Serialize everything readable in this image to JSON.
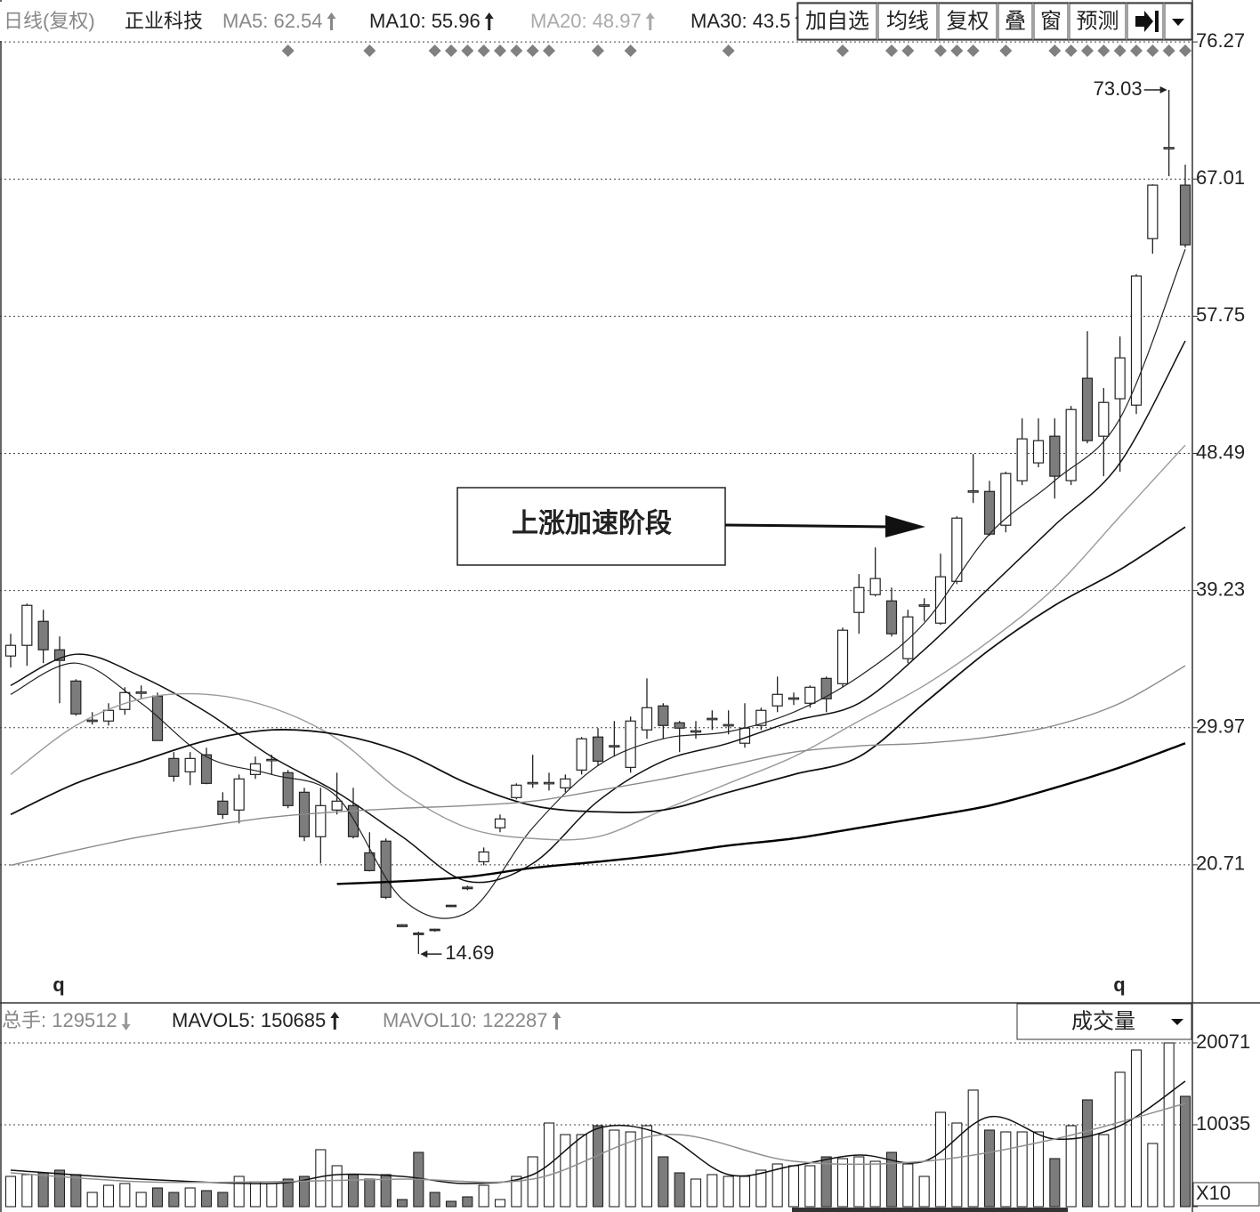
{
  "header": {
    "period": "日线(复权)",
    "stock": "正业科技",
    "buttons": [
      "加自选",
      "均线",
      "复权",
      "叠",
      "窗",
      "预测"
    ]
  },
  "chart_data": [
    {
      "type": "candlestick",
      "categories": [
        null,
        null,
        null,
        null,
        null,
        null,
        null,
        null,
        null,
        null,
        null,
        null,
        null,
        null,
        null,
        null,
        null,
        null,
        null,
        null,
        null,
        null,
        null,
        null,
        null,
        null,
        null,
        null,
        null,
        null,
        null,
        null,
        null,
        null,
        null,
        null,
        null,
        null,
        null,
        null,
        null,
        null,
        null,
        null,
        null,
        null,
        null,
        null,
        null,
        null,
        null,
        null,
        null,
        null,
        null,
        null,
        null,
        null,
        null,
        null,
        null,
        null,
        null,
        null,
        null,
        null,
        null,
        null,
        null,
        null,
        null,
        null,
        null
      ],
      "open": [
        34.81,
        35.53,
        37.15,
        35.23,
        33.12,
        30.42,
        30.42,
        31.2,
        32.3,
        32.1,
        27.89,
        26.99,
        28.14,
        25.01,
        24.41,
        26.81,
        27.77,
        26.93,
        25.61,
        22.61,
        24.41,
        24.71,
        21.52,
        22.31,
        16.66,
        16.1,
        16.36,
        17.98,
        19.2,
        20.92,
        23.21,
        25.25,
        26.21,
        26.21,
        25.91,
        27.11,
        29.34,
        28.7,
        27.29,
        29.82,
        31.44,
        30.3,
        29.7,
        30.54,
        30.12,
        28.92,
        30.12,
        31.44,
        31.92,
        31.62,
        33.3,
        32.94,
        37.75,
        38.95,
        38.53,
        34.63,
        38.2,
        37.03,
        39.85,
        45.9,
        45.92,
        43.64,
        46.64,
        47.85,
        49.65,
        46.65,
        53.56,
        49.65,
        52.18,
        51.75,
        62.99,
        69.08,
        66.6
      ],
      "close": [
        35.53,
        38.23,
        35.23,
        34.51,
        30.9,
        30.48,
        31.14,
        32.34,
        32.38,
        29.1,
        26.69,
        27.89,
        26.21,
        24.11,
        26.51,
        27.53,
        27.83,
        24.71,
        22.61,
        24.71,
        25.01,
        22.61,
        20.32,
        18.52,
        16.54,
        16.0,
        16.3,
        17.92,
        19.1,
        21.58,
        23.81,
        26.09,
        26.27,
        26.27,
        26.51,
        29.22,
        27.71,
        28.76,
        30.42,
        31.32,
        30.12,
        29.94,
        29.76,
        30.6,
        30.18,
        29.94,
        31.14,
        32.22,
        31.98,
        32.7,
        31.92,
        36.55,
        39.43,
        40.04,
        36.31,
        37.45,
        38.26,
        40.16,
        44.12,
        45.96,
        43.04,
        47.13,
        49.47,
        49.35,
        46.95,
        51.45,
        49.35,
        51.93,
        54.94,
        60.47,
        66.6,
        69.14,
        62.57
      ],
      "high": [
        36.31,
        38.35,
        37.93,
        36.13,
        33.24,
        31.02,
        31.62,
        32.7,
        32.82,
        32.34,
        28.32,
        28.32,
        28.62,
        25.61,
        26.81,
        28.02,
        28.14,
        27.11,
        25.91,
        25.91,
        26.93,
        25.91,
        22.91,
        22.49,
        16.7,
        16.2,
        16.4,
        18.0,
        19.3,
        21.88,
        24.11,
        26.21,
        28.14,
        26.93,
        26.81,
        29.34,
        29.94,
        30.42,
        30.72,
        33.3,
        31.62,
        30.42,
        30.42,
        31.14,
        31.14,
        31.62,
        31.32,
        33.42,
        32.34,
        32.82,
        33.42,
        36.73,
        40.34,
        42.14,
        39.43,
        37.93,
        38.71,
        41.72,
        44.24,
        48.45,
        46.64,
        47.25,
        50.85,
        50.85,
        50.85,
        51.69,
        56.74,
        52.9,
        56.38,
        60.59,
        66.66,
        73.03,
        67.98
      ],
      "low": [
        34.03,
        34.15,
        34.33,
        31.62,
        30.78,
        30.18,
        30.12,
        30.84,
        31.92,
        29.1,
        26.33,
        26.09,
        26.15,
        23.81,
        23.51,
        26.51,
        26.81,
        24.53,
        22.31,
        20.8,
        24.11,
        22.49,
        20.26,
        18.4,
        16.5,
        14.69,
        16.2,
        17.85,
        19.0,
        20.68,
        22.91,
        25.13,
        25.91,
        25.73,
        25.61,
        26.81,
        27.41,
        28.02,
        26.93,
        29.22,
        29.22,
        28.32,
        29.22,
        29.82,
        29.52,
        28.62,
        29.82,
        31.02,
        31.5,
        31.32,
        31.02,
        32.7,
        36.31,
        38.83,
        36.13,
        34.33,
        37.15,
        36.91,
        39.67,
        45.14,
        42.92,
        43.16,
        46.35,
        47.55,
        45.44,
        46.35,
        49.17,
        46.95,
        47.25,
        51.15,
        61.97,
        67.2,
        62.39
      ],
      "up_color": "#ffffff",
      "down_color": "#7c7c7c",
      "ylim": [
        11.51,
        79.1
      ],
      "yticks": [
        20.71,
        29.97,
        39.23,
        48.49,
        57.75,
        67.01,
        76.27
      ],
      "grid": true,
      "lines": [
        {
          "name": "MA5: 62.54",
          "color": "#222222",
          "x": [
            0,
            4,
            8,
            12,
            16,
            20,
            24,
            28,
            32,
            36,
            40,
            44,
            48,
            52,
            56,
            60,
            64,
            68,
            72
          ],
          "values": [
            32.22,
            34.33,
            31.62,
            28.01,
            26.81,
            25.31,
            18.4,
            17.5,
            23.21,
            27.41,
            29.22,
            29.7,
            31.02,
            33.42,
            37.03,
            43.04,
            46.65,
            50.85,
            62.27
          ]
        },
        {
          "name": "MA10: 55.96",
          "color": "#111111",
          "x": [
            0,
            4,
            8,
            12,
            16,
            20,
            24,
            28,
            32,
            36,
            40,
            44,
            48,
            52,
            56,
            60,
            64,
            68,
            72
          ],
          "values": [
            32.82,
            34.93,
            33.42,
            31.02,
            28.01,
            25.61,
            22.61,
            19.6,
            20.8,
            25.01,
            27.71,
            28.92,
            30.42,
            31.62,
            35.23,
            39.43,
            43.64,
            47.85,
            56.08
          ]
        },
        {
          "name": "MA20: 48.97",
          "color": "#9a9a9a",
          "x": [
            0,
            4,
            8,
            12,
            16,
            20,
            24,
            28,
            32,
            36,
            40,
            44,
            48,
            52,
            56,
            60,
            64,
            68,
            72
          ],
          "values": [
            26.81,
            30.12,
            31.92,
            32.22,
            31.32,
            29.22,
            25.61,
            23.21,
            22.49,
            22.61,
            24.41,
            26.21,
            28.01,
            30.42,
            32.82,
            35.83,
            39.43,
            44.24,
            49.05
          ]
        },
        {
          "name": "MA30: 43.5",
          "color": "#111111",
          "x": [
            0,
            4,
            8,
            12,
            16,
            20,
            24,
            28,
            32,
            36,
            40,
            44,
            48,
            52,
            56,
            60,
            64,
            68,
            72
          ],
          "values": [
            24.11,
            26.21,
            27.71,
            29.1,
            29.82,
            29.52,
            28.32,
            26.21,
            24.71,
            24.29,
            24.41,
            25.61,
            26.81,
            28.01,
            31.62,
            35.23,
            38.23,
            40.64,
            43.52
          ]
        },
        {
          "color": "#8a8a8a",
          "x": [
            0,
            4,
            8,
            12,
            16,
            20,
            24,
            28,
            32,
            36,
            40,
            44,
            48,
            52,
            56,
            60,
            64,
            68,
            72
          ],
          "values": [
            20.68,
            21.7,
            22.61,
            23.33,
            23.93,
            24.29,
            24.53,
            24.71,
            25.01,
            25.73,
            26.51,
            27.41,
            28.32,
            28.74,
            28.92,
            29.34,
            30.12,
            31.62,
            34.15
          ]
        },
        {
          "color": "#000000",
          "x": [
            20,
            24,
            28,
            32,
            36,
            40,
            44,
            48,
            52,
            56,
            60,
            64,
            68,
            72
          ],
          "values": [
            19.42,
            19.6,
            19.9,
            20.5,
            20.92,
            21.4,
            22.01,
            22.49,
            23.21,
            23.93,
            24.71,
            25.91,
            27.29,
            28.92
          ]
        }
      ],
      "signal_days": [
        17,
        22,
        26,
        27,
        28,
        29,
        30,
        31,
        32,
        33,
        36,
        38,
        44,
        51,
        54,
        55,
        57,
        58,
        59,
        61,
        64,
        65,
        66,
        67,
        68,
        69,
        70,
        71,
        72
      ],
      "annotations": {
        "high": "73.03",
        "low": "14.69",
        "callout": "上涨加速阶段"
      },
      "markers": [
        "q",
        "q"
      ]
    },
    {
      "type": "bar",
      "label": "成交量",
      "total_label": "总手: 129512",
      "values": [
        3709,
        3927,
        4145,
        4472,
        3927,
        1745,
        2618,
        2836,
        1745,
        2291,
        1745,
        2291,
        1963,
        1745,
        3709,
        3054,
        2836,
        3381,
        3709,
        6981,
        5018,
        3927,
        3381,
        3927,
        873,
        6654,
        1745,
        654,
        1200,
        2618,
        873,
        3709,
        6108,
        10254,
        8835,
        8835,
        9926,
        9381,
        9163,
        9926,
        6108,
        4145,
        3381,
        3927,
        3709,
        3709,
        4472,
        5236,
        5018,
        5018,
        6108,
        5890,
        6108,
        5563,
        6654,
        5236,
        3709,
        11562,
        10254,
        14289,
        9381,
        9163,
        9163,
        9163,
        5890,
        9926,
        13090,
        8835,
        16471,
        19198,
        7745,
        20071,
        13526
      ],
      "ylim": [
        0,
        21380
      ],
      "yticks": [
        {
          "value": 0,
          "label": "X10"
        },
        10035,
        20071
      ],
      "grid": true,
      "lines": [
        {
          "name": "MAVOL5: 150685",
          "color": "#111111",
          "x": [
            0,
            8,
            16,
            20,
            24,
            28,
            32,
            36,
            40,
            44,
            48,
            52,
            56,
            60,
            64,
            68,
            72
          ],
          "values": [
            4472,
            3381,
            2836,
            3927,
            3709,
            2836,
            3927,
            9599,
            8835,
            3927,
            5018,
            6327,
            5563,
            11017,
            8290,
            9926,
            15380
          ]
        },
        {
          "name": "MAVOL10: 122287",
          "color": "#8f8f8f",
          "x": [
            0,
            8,
            16,
            24,
            32,
            40,
            48,
            56,
            64,
            72
          ],
          "values": [
            4145,
            3054,
            3054,
            3381,
            3381,
            8835,
            5563,
            5563,
            8290,
            12653
          ]
        }
      ]
    }
  ]
}
